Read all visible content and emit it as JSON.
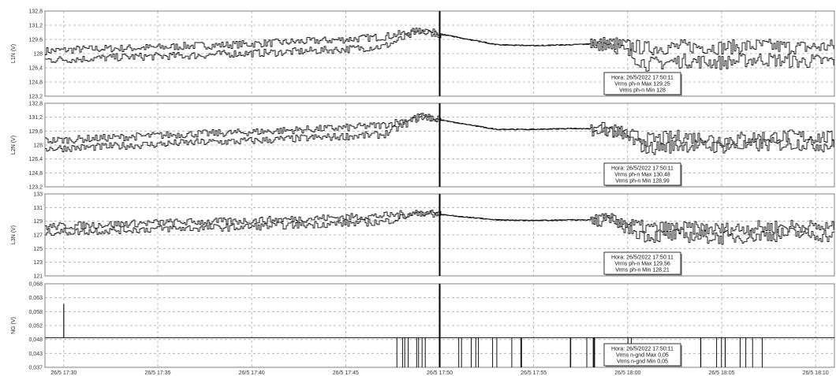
{
  "chart_data": {
    "type": "line",
    "cursor_x": "26/5 17:50",
    "x_labels": [
      "26/5 17:30",
      "26/5 17:35",
      "26/5 17:40",
      "26/5 17:45",
      "26/5 17:50",
      "26/5 17:55",
      "26/5 18:00",
      "26/5 18:05",
      "26/5 18:10"
    ],
    "grid": true,
    "panels": [
      {
        "ylabel": "L1N (V)",
        "yticks": [
          "132,8",
          "131,2",
          "129,6",
          "128",
          "126,4",
          "124,8",
          "123,2"
        ],
        "ylim": [
          123.2,
          132.8
        ],
        "series": [
          {
            "values": [
              128.3,
              128.5,
              128.6,
              128.7,
              128.9,
              129.0,
              129.2,
              129.4,
              129.6,
              129.9,
              130.6,
              129.8,
              129.0,
              128.9,
              129.0,
              129.2,
              128.6,
              128.8,
              128.7,
              128.9,
              128.7,
              128.8
            ]
          },
          {
            "values": [
              127.3,
              127.4,
              127.6,
              127.7,
              127.8,
              128.0,
              128.1,
              128.3,
              128.5,
              128.8,
              130.6,
              129.8,
              129.0,
              128.9,
              129.0,
              129.2,
              126.8,
              127.2,
              127.0,
              127.4,
              127.1,
              127.2
            ]
          }
        ],
        "tooltip": [
          "Hora: 26/5/2022 17:50:11",
          "Vrms ph-n Max 129,25",
          "Vrms ph-n Min 128"
        ]
      },
      {
        "ylabel": "L2N (V)",
        "yticks": [
          "132,8",
          "131,2",
          "129,6",
          "128",
          "126,4",
          "124,8",
          "123,2"
        ],
        "ylim": [
          123.2,
          132.8
        ],
        "series": [
          {
            "values": [
              128.5,
              128.7,
              128.9,
              129.1,
              129.3,
              129.4,
              129.6,
              129.8,
              130.0,
              130.3,
              131.3,
              130.5,
              129.8,
              129.8,
              129.9,
              129.8,
              128.6,
              129.0,
              128.6,
              128.9,
              129.0,
              128.8
            ]
          },
          {
            "values": [
              127.6,
              127.7,
              127.9,
              128.1,
              128.3,
              128.4,
              128.6,
              128.8,
              129.0,
              129.2,
              131.3,
              130.5,
              129.8,
              129.8,
              129.9,
              129.8,
              127.6,
              128.0,
              127.8,
              128.0,
              128.2,
              127.9
            ]
          }
        ],
        "tooltip": [
          "Hora: 26/5/2022 17:50:11",
          "Vrms ph-n Max 130,48",
          "Vrms ph-n Min 128,99"
        ]
      },
      {
        "ylabel": "L3N (V)",
        "yticks": [
          "133",
          "131",
          "129",
          "127",
          "125",
          "123",
          "121"
        ],
        "ylim": [
          121,
          133
        ],
        "series": [
          {
            "values": [
              128.2,
              128.4,
              128.6,
              128.8,
              128.9,
              129.0,
              129.2,
              129.4,
              129.6,
              129.8,
              130.3,
              129.7,
              129.2,
              129.1,
              129.2,
              129.2,
              128.0,
              128.0,
              127.8,
              128.1,
              128.3,
              128.0
            ]
          },
          {
            "values": [
              127.4,
              127.5,
              127.7,
              127.9,
              128.0,
              128.1,
              128.3,
              128.5,
              128.7,
              128.9,
              130.3,
              129.7,
              129.2,
              129.1,
              129.2,
              129.2,
              126.8,
              126.9,
              126.6,
              126.9,
              127.2,
              126.8
            ]
          }
        ],
        "tooltip": [
          "Hora: 26/5/2022 17:50:11",
          "Vrms ph-n Max 129,56",
          "Vrms ph-n Min 128,21"
        ]
      },
      {
        "ylabel": "NG (V)",
        "yticks": [
          "0,068",
          "0,063",
          "0,058",
          "0,052",
          "0,048",
          "0,043",
          "0,037"
        ],
        "ylim": [
          0.037,
          0.068
        ],
        "baseline": 0.048,
        "spikes": [
          {
            "x": "26/5 17:30",
            "value": 0.0605
          },
          {
            "x": "26/5 17:48",
            "value": 0.037
          },
          {
            "x": "26/5 17:49",
            "value": 0.037
          },
          {
            "x": "26/5 17:51",
            "value": 0.037
          },
          {
            "x": "26/5 17:52",
            "value": 0.037
          },
          {
            "x": "26/5 17:53",
            "value": 0.037
          },
          {
            "x": "26/5 17:54",
            "value": 0.037
          },
          {
            "x": "26/5 17:57",
            "value": 0.037
          },
          {
            "x": "26/5 17:58",
            "value": 0.037
          },
          {
            "x": "26/5 18:00",
            "value": 0.037
          },
          {
            "x": "26/5 18:04",
            "value": 0.037
          },
          {
            "x": "26/5 18:05",
            "value": 0.037
          },
          {
            "x": "26/5 18:06",
            "value": 0.037
          },
          {
            "x": "26/5 18:07",
            "value": 0.037
          }
        ],
        "tooltip": [
          "Hora: 26/5/2022 17:50:11",
          "Vrms n-gnd Max 0,05",
          "Vrms n-gnd Min 0,05"
        ]
      }
    ]
  }
}
